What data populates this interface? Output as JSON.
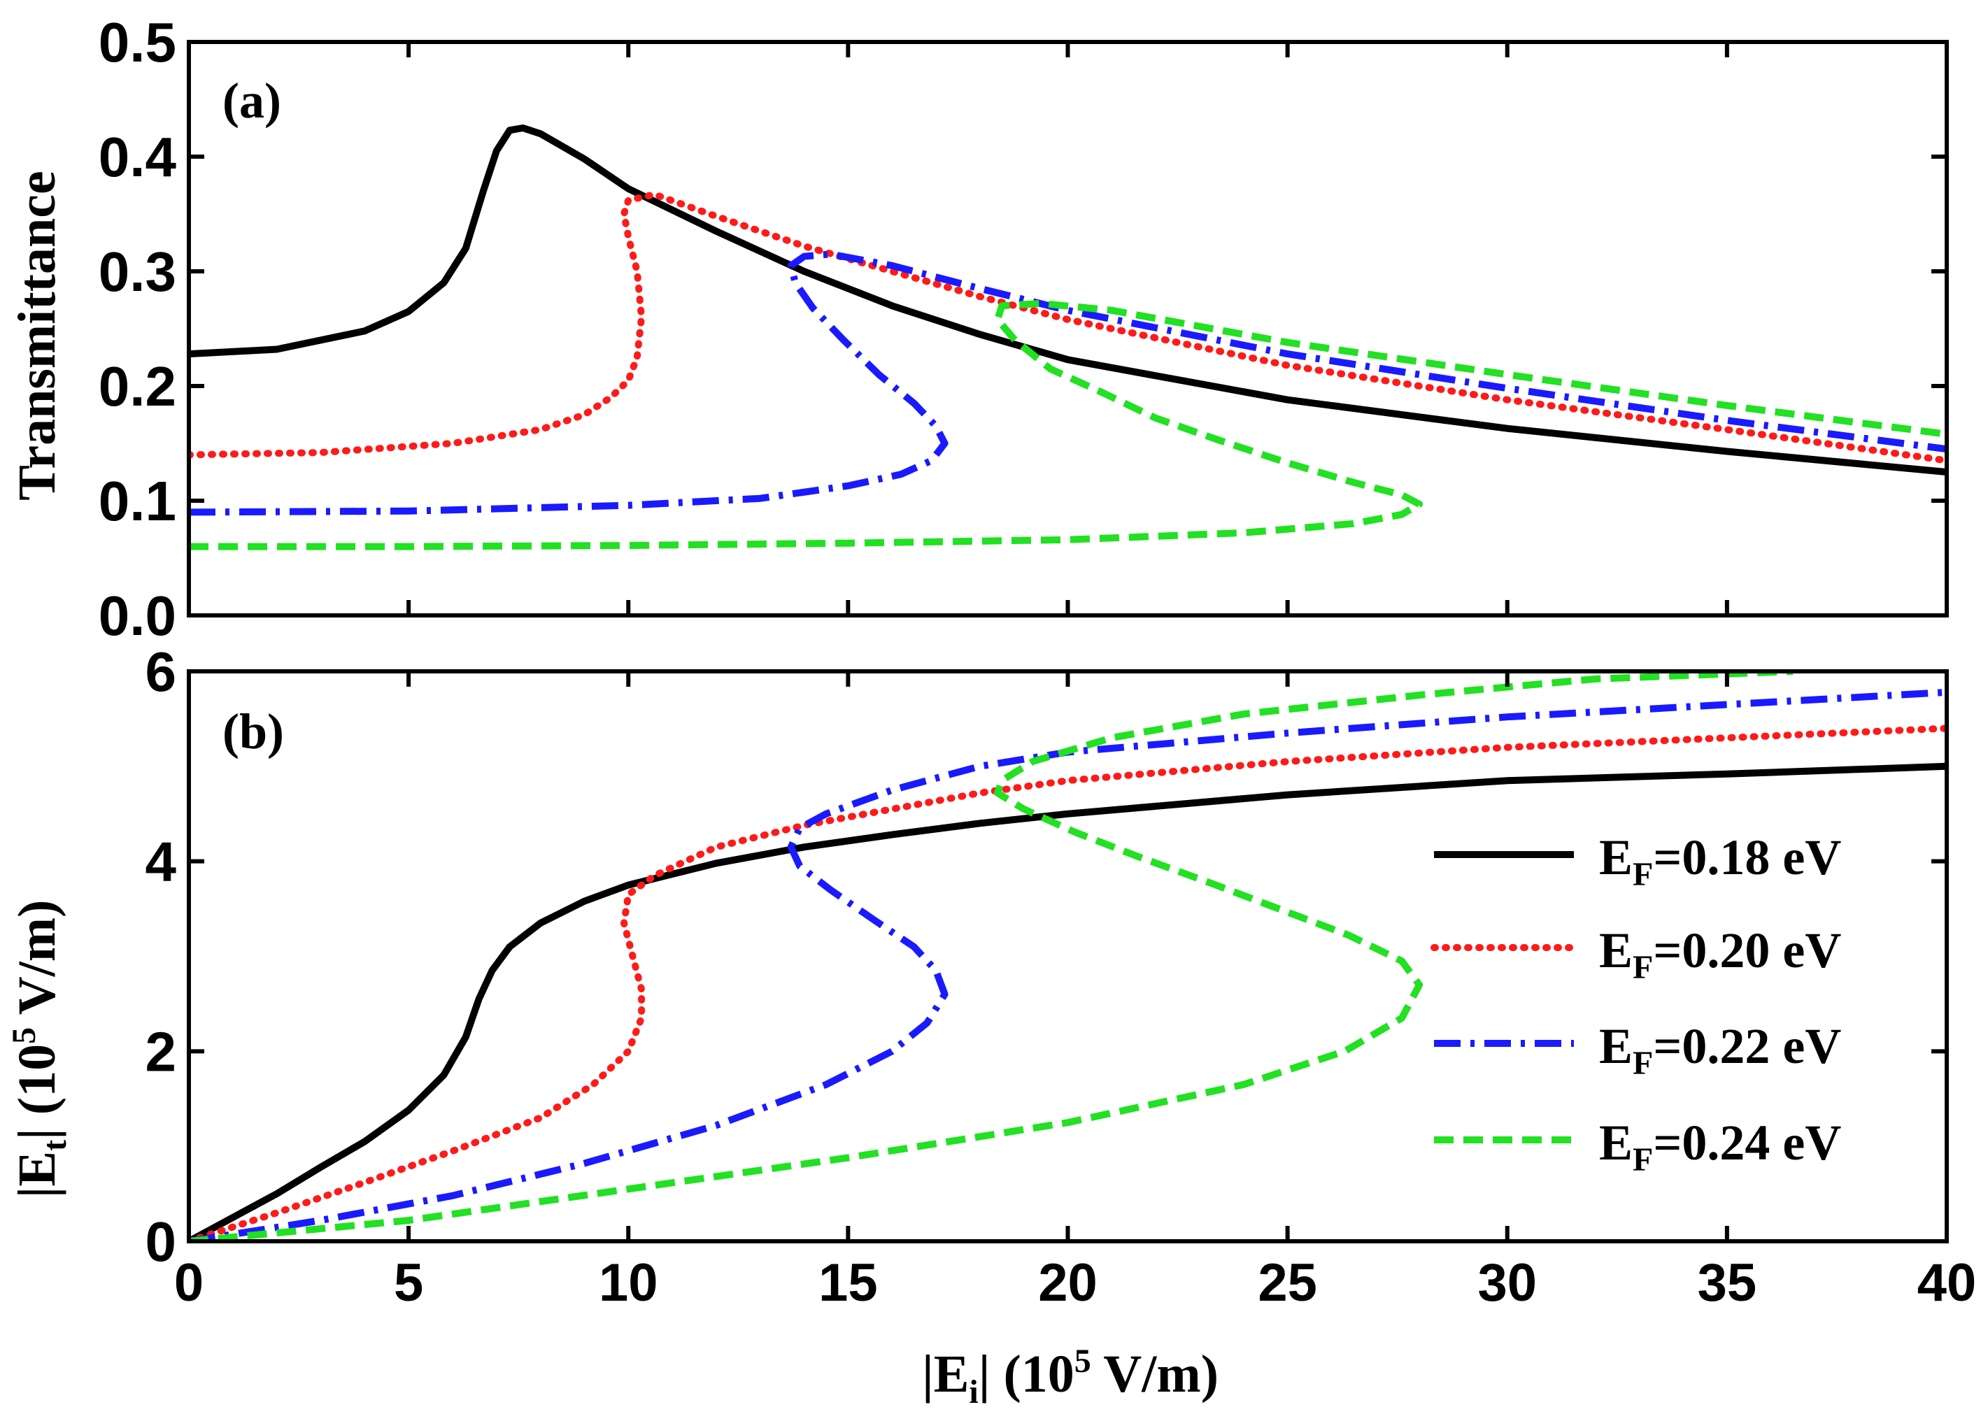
{
  "chart_data": [
    {
      "panel": "(a)",
      "type": "line",
      "ylabel": "Transmittance",
      "xlim": [
        0,
        40
      ],
      "ylim": [
        0,
        0.5
      ],
      "xticks": [
        "0",
        "5",
        "10",
        "15",
        "20",
        "25",
        "30",
        "35",
        "40"
      ],
      "yticks": [
        "0.0",
        "0.1",
        "0.2",
        "0.3",
        "0.4",
        "0.5"
      ],
      "series": [
        {
          "name": "EF=0.18 eV",
          "color": "#000000",
          "style": "solid",
          "x": [
            0,
            2,
            4,
            5,
            5.8,
            6.3,
            6.7,
            7.0,
            7.3,
            7.6,
            8.0,
            9,
            10,
            12,
            14,
            16,
            18,
            20,
            25,
            30,
            35,
            40
          ],
          "y": [
            0.228,
            0.232,
            0.248,
            0.265,
            0.29,
            0.32,
            0.37,
            0.405,
            0.423,
            0.425,
            0.42,
            0.398,
            0.372,
            0.335,
            0.3,
            0.27,
            0.245,
            0.223,
            0.188,
            0.163,
            0.143,
            0.125
          ]
        },
        {
          "name": "EF=0.20 eV",
          "color": "#ff1a1a",
          "style": "dotted",
          "x": [
            0,
            3,
            6,
            8,
            9,
            9.6,
            10.0,
            10.2,
            10.3,
            10.2,
            10.0,
            9.9,
            10.0,
            10.6,
            12,
            14,
            16,
            18,
            20,
            25,
            30,
            35,
            40
          ],
          "y": [
            0.14,
            0.142,
            0.15,
            0.162,
            0.175,
            0.19,
            0.205,
            0.225,
            0.26,
            0.3,
            0.33,
            0.35,
            0.362,
            0.367,
            0.348,
            0.322,
            0.3,
            0.278,
            0.258,
            0.218,
            0.188,
            0.162,
            0.135
          ]
        },
        {
          "name": "EF=0.22 eV",
          "color": "#1a1aff",
          "style": "dashdot",
          "x": [
            0,
            5,
            10,
            13,
            15,
            16.2,
            16.9,
            17.2,
            17.0,
            16.5,
            15.7,
            14.9,
            14.2,
            13.8,
            13.7,
            14.0,
            14.6,
            16,
            18,
            20,
            25,
            30,
            35,
            40
          ],
          "y": [
            0.09,
            0.091,
            0.096,
            0.102,
            0.113,
            0.123,
            0.135,
            0.15,
            0.165,
            0.185,
            0.21,
            0.24,
            0.268,
            0.29,
            0.305,
            0.313,
            0.315,
            0.305,
            0.285,
            0.266,
            0.228,
            0.198,
            0.17,
            0.145
          ]
        },
        {
          "name": "EF=0.24 eV",
          "color": "#22e022",
          "style": "dashed",
          "x": [
            0,
            5,
            10,
            15,
            20,
            24,
            26.5,
            27.6,
            28.0,
            27.6,
            26.5,
            25,
            23.5,
            22,
            20.8,
            19.6,
            18.8,
            18.4,
            18.5,
            19.4,
            21,
            25,
            30,
            35,
            40
          ],
          "y": [
            0.06,
            0.06,
            0.061,
            0.063,
            0.066,
            0.072,
            0.08,
            0.088,
            0.097,
            0.105,
            0.116,
            0.133,
            0.152,
            0.172,
            0.194,
            0.215,
            0.24,
            0.258,
            0.27,
            0.272,
            0.266,
            0.238,
            0.21,
            0.183,
            0.158
          ]
        }
      ]
    },
    {
      "panel": "(b)",
      "type": "line",
      "ylabel": "|Et| (105 V/m)",
      "xlabel": "|Ei| (105 V/m)",
      "xlim": [
        0,
        40
      ],
      "ylim": [
        0,
        6
      ],
      "xticks": [
        "0",
        "5",
        "10",
        "15",
        "20",
        "25",
        "30",
        "35",
        "40"
      ],
      "yticks": [
        "0",
        "2",
        "4",
        "6"
      ],
      "series": [
        {
          "name": "EF=0.18 eV",
          "color": "#000000",
          "style": "solid",
          "x": [
            0,
            1,
            2,
            3,
            4,
            5,
            5.8,
            6.3,
            6.6,
            6.9,
            7.3,
            8,
            9,
            10,
            12,
            14,
            16,
            18,
            20,
            25,
            30,
            35,
            40
          ],
          "y": [
            0,
            0.25,
            0.5,
            0.78,
            1.05,
            1.38,
            1.75,
            2.15,
            2.55,
            2.85,
            3.1,
            3.35,
            3.58,
            3.75,
            3.98,
            4.15,
            4.28,
            4.4,
            4.5,
            4.7,
            4.85,
            4.92,
            5.0
          ]
        },
        {
          "name": "EF=0.20 eV",
          "color": "#ff1a1a",
          "style": "dotted",
          "x": [
            0,
            2,
            4,
            6,
            8,
            9.2,
            10.0,
            10.3,
            10.3,
            10.1,
            9.9,
            10.0,
            10.6,
            12,
            14,
            16,
            18,
            20,
            25,
            30,
            35,
            40
          ],
          "y": [
            0,
            0.3,
            0.62,
            0.95,
            1.3,
            1.65,
            2.0,
            2.35,
            2.65,
            3.0,
            3.35,
            3.65,
            3.85,
            4.15,
            4.38,
            4.55,
            4.72,
            4.85,
            5.05,
            5.2,
            5.3,
            5.4
          ]
        },
        {
          "name": "EF=0.22 eV",
          "color": "#1a1aff",
          "style": "dashdot",
          "x": [
            0,
            3,
            6,
            9,
            12,
            14.5,
            16,
            16.8,
            17.2,
            17.0,
            16.5,
            15.6,
            14.6,
            13.9,
            13.7,
            13.9,
            14.5,
            16,
            18,
            20,
            25,
            30,
            35,
            40
          ],
          "y": [
            0,
            0.22,
            0.48,
            0.82,
            1.22,
            1.65,
            2.0,
            2.3,
            2.6,
            2.85,
            3.1,
            3.38,
            3.7,
            3.95,
            4.15,
            4.35,
            4.5,
            4.75,
            5.0,
            5.15,
            5.35,
            5.52,
            5.65,
            5.78
          ]
        },
        {
          "name": "EF=0.24 eV",
          "color": "#22e022",
          "style": "dashed",
          "x": [
            0,
            5,
            10,
            15,
            20,
            24,
            26.3,
            27.6,
            28.0,
            27.6,
            26.4,
            24.8,
            23.2,
            21.6,
            20.2,
            19.0,
            18.4,
            18.5,
            19.2,
            21,
            24,
            28,
            32,
            36.5
          ],
          "y": [
            0,
            0.22,
            0.55,
            0.88,
            1.25,
            1.65,
            2.0,
            2.35,
            2.7,
            2.95,
            3.22,
            3.5,
            3.78,
            4.05,
            4.3,
            4.55,
            4.72,
            4.85,
            5.05,
            5.3,
            5.55,
            5.75,
            5.92,
            6.0
          ]
        }
      ]
    }
  ],
  "legend": [
    {
      "main": "E",
      "sub": "F",
      "rest": "=0.18 eV"
    },
    {
      "main": "E",
      "sub": "F",
      "rest": "=0.20 eV"
    },
    {
      "main": "E",
      "sub": "F",
      "rest": "=0.22 eV"
    },
    {
      "main": "E",
      "sub": "F",
      "rest": "=0.24 eV"
    }
  ],
  "labels": {
    "panel_a": "(a)",
    "panel_b": "(b)",
    "ylabel_a": "Transmittance",
    "ylabel_b_pre": "|E",
    "ylabel_b_sub": "t",
    "ylabel_b_post": "| (10",
    "ylabel_b_sup": "5",
    "ylabel_b_unit": " V/m)",
    "xlabel_pre": "|E",
    "xlabel_sub": "i",
    "xlabel_post": "| (10",
    "xlabel_sup": "5",
    "xlabel_unit": " V/m)"
  }
}
